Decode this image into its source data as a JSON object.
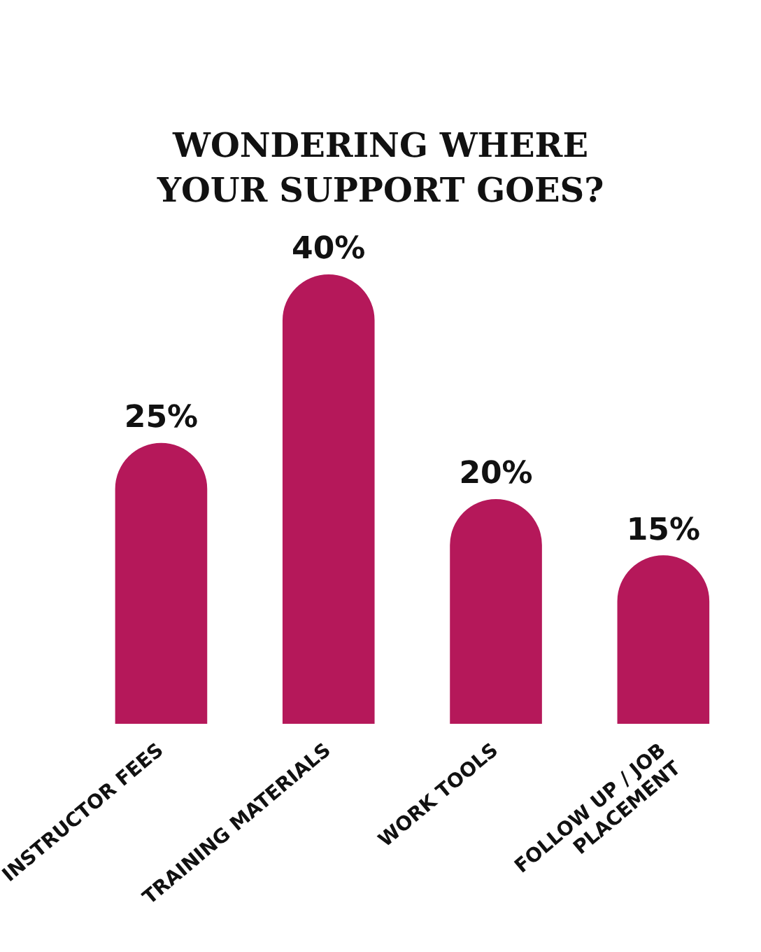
{
  "chart_data": {
    "type": "bar",
    "title": "WONDERING WHERE YOUR SUPPORT GOES?",
    "categories": [
      "INSTRUCTOR FEES",
      "TRAINING MATERIALS",
      "WORK TOOLS",
      "FOLLOW UP / JOB PLACEMENT"
    ],
    "values": [
      25,
      40,
      20,
      15
    ],
    "value_labels": [
      "25%",
      "40%",
      "20%",
      "15%"
    ],
    "color": "#b5185a"
  }
}
